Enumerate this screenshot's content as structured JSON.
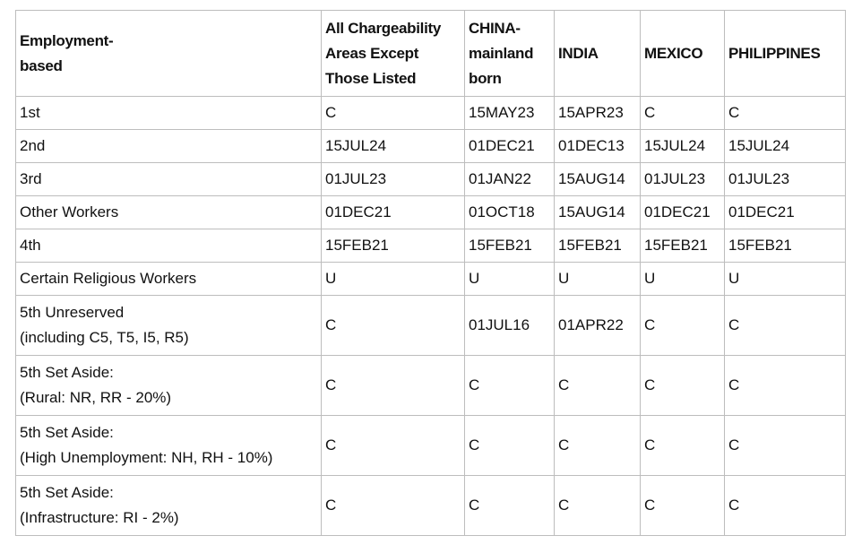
{
  "table": {
    "header": [
      [
        "Employment-",
        "based"
      ],
      [
        "All Chargeability",
        "Areas Except",
        "Those Listed"
      ],
      [
        "CHINA-",
        "mainland",
        "born"
      ],
      "INDIA",
      "MEXICO",
      "PHILIPPINES"
    ],
    "rows": [
      [
        "1st",
        "C",
        "15MAY23",
        "15APR23",
        "C",
        "C"
      ],
      [
        "2nd",
        "15JUL24",
        "01DEC21",
        "01DEC13",
        "15JUL24",
        "15JUL24"
      ],
      [
        "3rd",
        "01JUL23",
        "01JAN22",
        "15AUG14",
        "01JUL23",
        "01JUL23"
      ],
      [
        "Other Workers",
        "01DEC21",
        "01OCT18",
        "15AUG14",
        "01DEC21",
        "01DEC21"
      ],
      [
        "4th",
        "15FEB21",
        "15FEB21",
        "15FEB21",
        "15FEB21",
        "15FEB21"
      ],
      [
        "Certain Religious Workers",
        "U",
        "U",
        "U",
        "U",
        "U"
      ],
      [
        [
          "5th Unreserved",
          "(including C5, T5, I5, R5)"
        ],
        "C",
        "01JUL16",
        "01APR22",
        "C",
        "C"
      ],
      [
        [
          "5th Set Aside:",
          "(Rural: NR, RR - 20%)"
        ],
        "C",
        "C",
        "C",
        "C",
        "C"
      ],
      [
        [
          "5th Set Aside:",
          "(High Unemployment: NH, RH - 10%)"
        ],
        "C",
        "C",
        "C",
        "C",
        "C"
      ],
      [
        [
          "5th Set Aside:",
          "(Infrastructure: RI - 2%)"
        ],
        "C",
        "C",
        "C",
        "C",
        "C"
      ]
    ]
  }
}
